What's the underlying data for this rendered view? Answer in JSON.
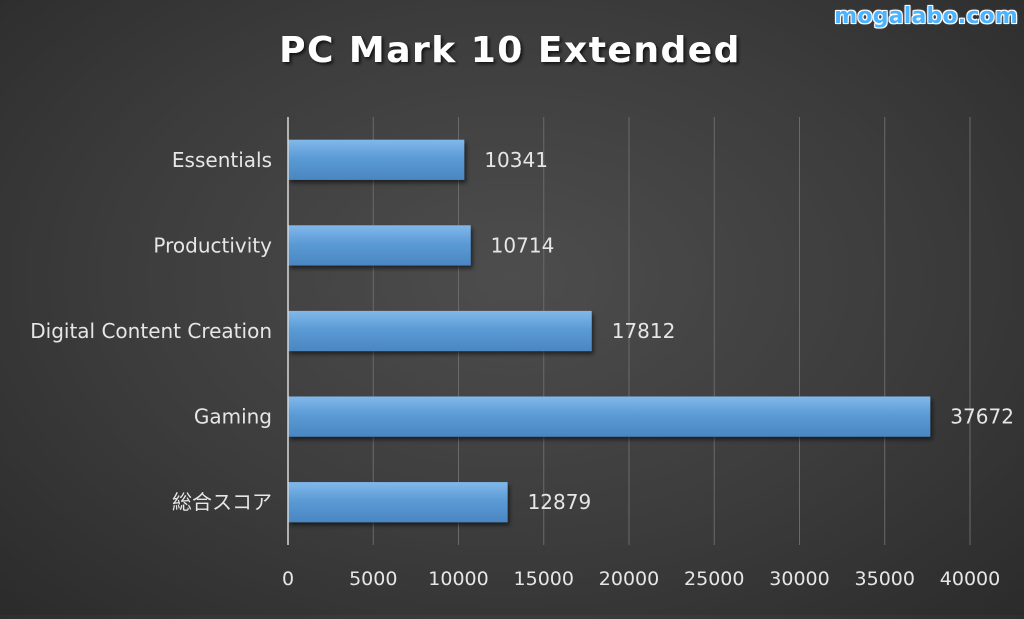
{
  "watermark": "mogalabo.com",
  "chart_data": {
    "type": "bar",
    "orientation": "horizontal",
    "title": "PC Mark 10 Extended",
    "categories": [
      "Essentials",
      "Productivity",
      "Digital Content Creation",
      "Gaming",
      "総合スコア"
    ],
    "values": [
      10341,
      10714,
      17812,
      37672,
      12879
    ],
    "data_labels": [
      "10341",
      "10714",
      "17812",
      "37672",
      "12879"
    ],
    "xlim": [
      0,
      40000
    ],
    "x_ticks": [
      0,
      5000,
      10000,
      15000,
      20000,
      25000,
      30000,
      35000,
      40000
    ],
    "x_tick_labels": [
      "0",
      "5000",
      "10000",
      "15000",
      "20000",
      "25000",
      "30000",
      "35000",
      "40000"
    ],
    "grid": "vertical",
    "legend": "none",
    "colors": {
      "bar": "#5b9bd5",
      "bar_highlight": "#7db3e6",
      "bar_shadow": "#3e77b0",
      "title": "#ffffff",
      "text": "#e6e6e6",
      "grid": "#6a6a6a",
      "axis": "#d9d9d9",
      "watermark": "#4bb3ff"
    }
  }
}
